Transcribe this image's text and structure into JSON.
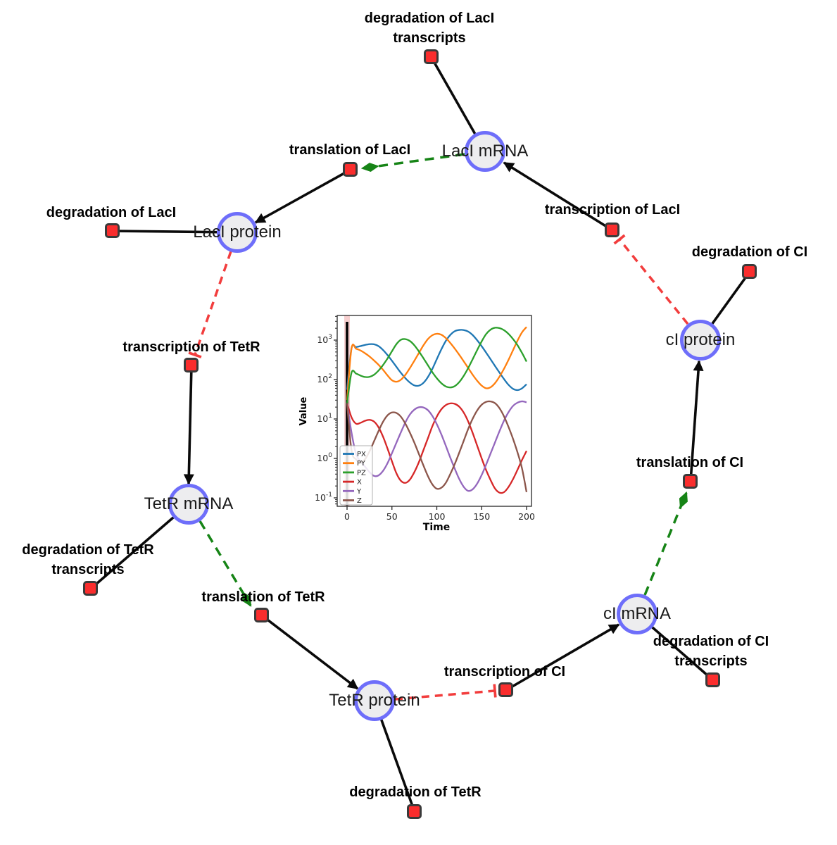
{
  "diagram": {
    "species": [
      {
        "id": "laci-mrna",
        "label": "LacI mRNA"
      },
      {
        "id": "laci-protein",
        "label": "LacI protein"
      },
      {
        "id": "tetr-mrna",
        "label": "TetR mRNA"
      },
      {
        "id": "tetr-protein",
        "label": "TetR protein"
      },
      {
        "id": "ci-mrna",
        "label": "cI mRNA"
      },
      {
        "id": "ci-protein",
        "label": "cI protein"
      }
    ],
    "reactions": [
      {
        "id": "degradation-laci-transcripts",
        "label": "degradation of LacI",
        "label2": "transcripts"
      },
      {
        "id": "translation-laci",
        "label": "translation of LacI"
      },
      {
        "id": "degradation-laci",
        "label": "degradation of LacI"
      },
      {
        "id": "transcription-laci",
        "label": "transcription of LacI"
      },
      {
        "id": "degradation-ci",
        "label": "degradation of CI"
      },
      {
        "id": "transcription-tetr",
        "label": "transcription of TetR"
      },
      {
        "id": "degradation-tetr-transcripts",
        "label": "degradation of TetR",
        "label2": "transcripts"
      },
      {
        "id": "translation-tetr",
        "label": "translation of TetR"
      },
      {
        "id": "translation-ci",
        "label": "translation of CI"
      },
      {
        "id": "transcription-ci",
        "label": "transcription of CI"
      },
      {
        "id": "degradation-ci-transcripts",
        "label": "degradation of CI",
        "label2": "transcripts"
      },
      {
        "id": "degradation-tetr",
        "label": "degradation of TetR"
      }
    ],
    "colors": {
      "species_fill": "#ededef",
      "species_border": "#6e6efa",
      "reaction_fill": "#fa2d2d",
      "reaction_border": "#3a3a3a",
      "edge_black": "#0a0a0a",
      "edge_modifier_green": "#168416",
      "edge_inhibition_red": "#f23d3d"
    }
  },
  "chart_data": {
    "type": "line",
    "title": "",
    "xlabel": "Time",
    "ylabel": "Value",
    "x_ticks": [
      0,
      50,
      100,
      150,
      200
    ],
    "y_scale": "log",
    "y_ticks_exponents": [
      3,
      2,
      1,
      0,
      -1
    ],
    "xlim": [
      -11,
      205
    ],
    "ylim_exponents": [
      -1.21,
      3.62
    ],
    "legend_position": "lower left",
    "grid": false,
    "x": [
      0,
      5,
      10,
      15,
      20,
      25,
      30,
      35,
      40,
      45,
      50,
      55,
      60,
      65,
      70,
      75,
      80,
      85,
      90,
      95,
      100,
      105,
      110,
      115,
      120,
      125,
      130,
      135,
      140,
      145,
      150,
      155,
      160,
      165,
      170,
      175,
      180,
      185,
      190,
      195,
      200
    ],
    "series": [
      {
        "name": "PX",
        "color": "#1f77b4",
        "values": [
          55,
          620,
          665,
          705,
          755,
          790,
          785,
          705,
          565,
          420,
          300,
          210,
          148,
          108,
          84,
          71,
          70,
          82,
          115,
          185,
          330,
          580,
          950,
          1350,
          1680,
          1810,
          1800,
          1650,
          1340,
          990,
          700,
          480,
          325,
          218,
          148,
          102,
          73,
          58,
          54,
          60,
          76
        ]
      },
      {
        "name": "PY",
        "color": "#ff7f0e",
        "values": [
          30,
          625,
          605,
          545,
          465,
          385,
          305,
          238,
          178,
          128,
          96,
          88,
          99,
          132,
          195,
          300,
          470,
          730,
          1060,
          1330,
          1450,
          1370,
          1130,
          850,
          610,
          425,
          290,
          196,
          132,
          93,
          70,
          60,
          64,
          82,
          120,
          190,
          320,
          560,
          980,
          1580,
          2150
        ]
      },
      {
        "name": "PZ",
        "color": "#2ca02c",
        "values": [
          25,
          150,
          142,
          126,
          116,
          117,
          132,
          168,
          232,
          340,
          520,
          790,
          1020,
          1060,
          950,
          740,
          520,
          350,
          232,
          154,
          108,
          81,
          67,
          63,
          68,
          86,
          124,
          196,
          330,
          560,
          930,
          1430,
          1850,
          2060,
          2010,
          1780,
          1430,
          1060,
          740,
          470,
          285
        ]
      },
      {
        "name": "X",
        "color": "#d62728",
        "values": [
          25,
          11,
          7.6,
          8,
          9,
          9.5,
          8.6,
          6.2,
          3.6,
          1.8,
          0.85,
          0.42,
          0.27,
          0.24,
          0.29,
          0.45,
          0.8,
          1.6,
          3.2,
          6.5,
          11.5,
          17.5,
          22.5,
          24.8,
          24.2,
          20.5,
          14.5,
          8.6,
          4.4,
          2.1,
          1.0,
          0.5,
          0.28,
          0.17,
          0.135,
          0.14,
          0.19,
          0.3,
          0.52,
          0.92,
          1.55
        ]
      },
      {
        "name": "Y",
        "color": "#9467bd",
        "values": [
          25,
          4.5,
          1.3,
          0.85,
          0.62,
          0.45,
          0.36,
          0.37,
          0.48,
          0.75,
          1.35,
          2.5,
          4.6,
          8.2,
          13,
          17.3,
          19.8,
          19.6,
          16.8,
          12,
          7.4,
          4.1,
          2.1,
          1.05,
          0.55,
          0.3,
          0.19,
          0.15,
          0.165,
          0.23,
          0.38,
          0.7,
          1.35,
          2.6,
          5,
          9.2,
          15,
          21.5,
          26,
          28,
          26.5
        ]
      },
      {
        "name": "Z",
        "color": "#8c564b",
        "values": [
          25,
          1.6,
          0.95,
          0.8,
          0.95,
          1.5,
          2.7,
          4.9,
          8.4,
          12.3,
          14.6,
          14.2,
          11.4,
          7.6,
          4.5,
          2.5,
          1.3,
          0.67,
          0.36,
          0.22,
          0.17,
          0.18,
          0.24,
          0.4,
          0.72,
          1.4,
          2.8,
          5.6,
          10.2,
          16.5,
          23,
          27.2,
          27.8,
          25,
          18.5,
          11.5,
          6.2,
          3.1,
          1.4,
          0.55,
          0.14
        ]
      }
    ]
  }
}
